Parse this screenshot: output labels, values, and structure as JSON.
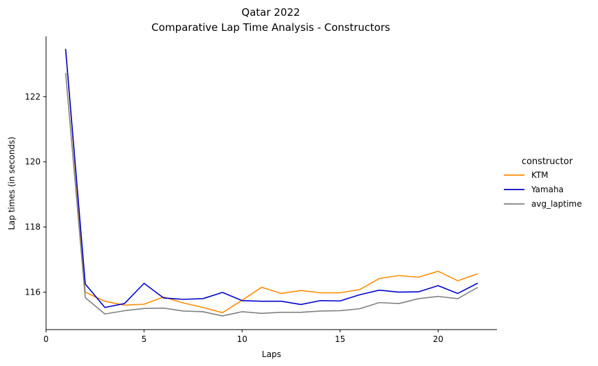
{
  "chart_data": {
    "type": "line",
    "title": "Qatar 2022",
    "subtitle": "Comparative Lap Time Analysis - Constructors",
    "xlabel": "Laps",
    "ylabel": "Lap times (in seconds)",
    "xlim": [
      0,
      23
    ],
    "ylim": [
      114.85,
      123.85
    ],
    "xticks": [
      0,
      5,
      10,
      15,
      20
    ],
    "yticks": [
      116,
      118,
      120,
      122
    ],
    "grid": false,
    "legend": {
      "title": "constructor",
      "placement": "right"
    },
    "x": [
      1,
      2,
      3,
      4,
      5,
      6,
      7,
      8,
      9,
      10,
      11,
      12,
      13,
      14,
      15,
      16,
      17,
      18,
      19,
      20,
      21,
      22
    ],
    "series": [
      {
        "name": "KTM",
        "color": "#ff8c00",
        "values": [
          123.45,
          116.0,
          115.72,
          115.6,
          115.63,
          115.85,
          115.67,
          115.53,
          115.37,
          115.75,
          116.15,
          115.96,
          116.05,
          115.98,
          115.98,
          116.08,
          116.42,
          116.51,
          116.46,
          116.64,
          116.35,
          116.56
        ]
      },
      {
        "name": "Yamaha",
        "color": "#0000cd",
        "values": [
          123.45,
          116.25,
          115.53,
          115.65,
          116.27,
          115.82,
          115.78,
          115.8,
          115.99,
          115.74,
          115.72,
          115.72,
          115.62,
          115.74,
          115.73,
          115.92,
          116.06,
          116.0,
          116.01,
          116.2,
          115.96,
          116.27
        ]
      },
      {
        "name": "avg_laptime",
        "color": "#808080",
        "values": [
          122.72,
          115.83,
          115.33,
          115.43,
          115.5,
          115.51,
          115.42,
          115.4,
          115.27,
          115.4,
          115.35,
          115.38,
          115.38,
          115.42,
          115.43,
          115.49,
          115.68,
          115.65,
          115.8,
          115.87,
          115.8,
          116.14
        ]
      }
    ]
  }
}
